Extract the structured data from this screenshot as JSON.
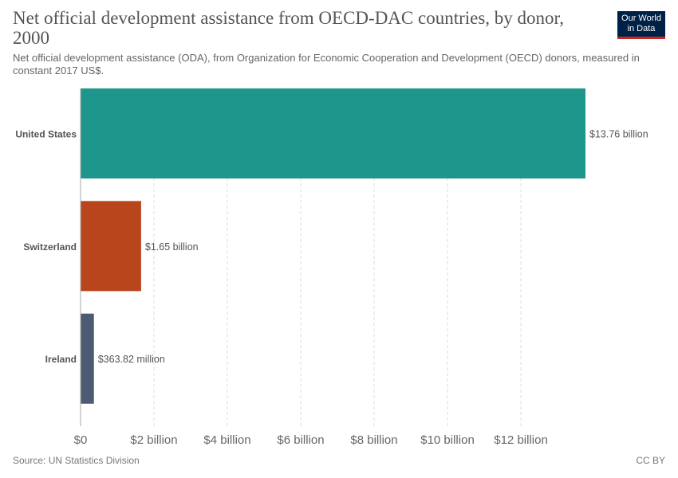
{
  "header": {
    "title": "Net official development assistance from OECD-DAC countries, by donor, 2000",
    "subtitle": "Net official development assistance (ODA), from Organization for Economic Cooperation and Development (OECD) donors, measured in constant 2017 US$.",
    "logo_line1": "Our World",
    "logo_line2": "in Data"
  },
  "footer": {
    "source": "Source: UN Statistics Division",
    "license": "CC BY"
  },
  "colors": {
    "logo_background": "#002147",
    "logo_accent": "#ce261e"
  },
  "chart_data": {
    "type": "bar",
    "orientation": "horizontal",
    "categories": [
      "United States",
      "Switzerland",
      "Ireland"
    ],
    "values": [
      13.76,
      1.65,
      0.36382
    ],
    "value_unit": "billion constant 2017 US$",
    "data_labels": [
      "$13.76 billion",
      "$1.65 billion",
      "$363.82 million"
    ],
    "colors": [
      "#1f968b",
      "#b9451d",
      "#4c5a73"
    ],
    "xlim": [
      0,
      13.76
    ],
    "xticks": [
      0,
      2,
      4,
      6,
      8,
      10,
      12
    ],
    "xtick_labels": [
      "$0",
      "$2 billion",
      "$4 billion",
      "$6 billion",
      "$8 billion",
      "$10 billion",
      "$12 billion"
    ],
    "grid": "vertical dashed",
    "legend": "none"
  }
}
